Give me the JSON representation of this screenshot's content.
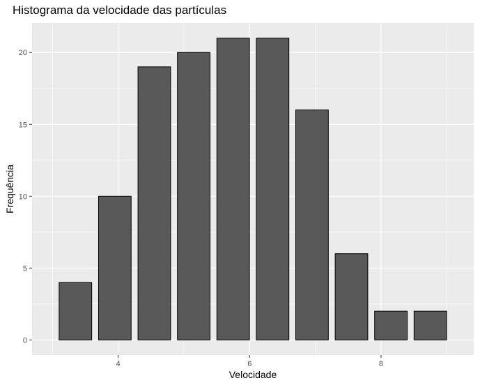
{
  "chart_data": {
    "type": "bar",
    "title": "Histograma da velocidade das partículas",
    "xlabel": "Velocidade",
    "ylabel": "Frequência",
    "bins": [
      {
        "x": 3.35,
        "value": 4
      },
      {
        "x": 3.95,
        "value": 10
      },
      {
        "x": 4.55,
        "value": 19
      },
      {
        "x": 5.15,
        "value": 20
      },
      {
        "x": 5.75,
        "value": 21
      },
      {
        "x": 6.35,
        "value": 21
      },
      {
        "x": 6.95,
        "value": 16
      },
      {
        "x": 7.55,
        "value": 6
      },
      {
        "x": 8.15,
        "value": 2
      },
      {
        "x": 8.75,
        "value": 2
      }
    ],
    "bin_width": 0.6,
    "xlim": [
      2.69,
      9.41
    ],
    "ylim": [
      -1.05,
      22.05
    ],
    "x_ticks": [
      4,
      6,
      8
    ],
    "x_tick_labels": [
      "4",
      "6",
      "8"
    ],
    "y_ticks": [
      0,
      5,
      10,
      15,
      20
    ],
    "y_tick_labels": [
      "0",
      "5",
      "10",
      "15",
      "20"
    ],
    "grid": true,
    "colors": {
      "panel_background": "#ebebeb",
      "grid_major": "#ffffff",
      "bar_fill": "#595959",
      "bar_outline": "#000000",
      "tick_label": "#4d4d4d"
    }
  }
}
